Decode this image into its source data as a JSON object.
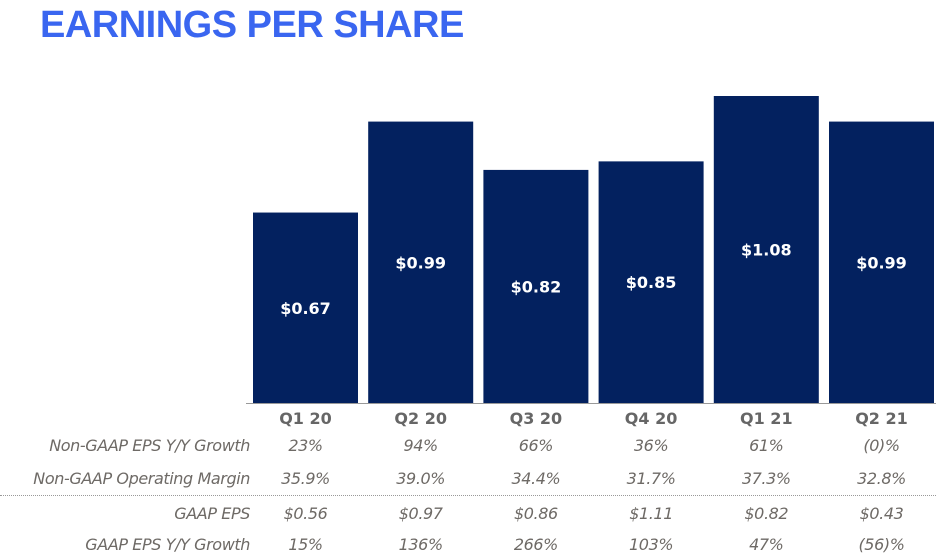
{
  "title": "EARNINGS PER SHARE",
  "colors": {
    "title": "#3a66f0",
    "bar": "#03215f",
    "text": "#6e6a66",
    "axis": "#999999"
  },
  "chart_data": {
    "type": "bar",
    "title": "EARNINGS PER SHARE",
    "categories": [
      "Q1 20",
      "Q2 20",
      "Q3 20",
      "Q4 20",
      "Q1 21",
      "Q2 21"
    ],
    "values": [
      0.67,
      0.99,
      0.82,
      0.85,
      1.08,
      0.99
    ],
    "labels": [
      "$0.67",
      "$0.99",
      "$0.82",
      "$0.85",
      "$1.08",
      "$0.99"
    ],
    "xlabel": "",
    "ylabel": "",
    "ylim": [
      0,
      1.08
    ],
    "grid": false
  },
  "table": {
    "rows": [
      {
        "label": "Non-GAAP EPS Y/Y Growth",
        "values": [
          "23%",
          "94%",
          "66%",
          "36%",
          "61%",
          "(0)%"
        ]
      },
      {
        "label": "Non-GAAP Operating Margin",
        "values": [
          "35.9%",
          "39.0%",
          "34.4%",
          "31.7%",
          "37.3%",
          "32.8%"
        ]
      },
      {
        "label": "GAAP EPS",
        "values": [
          "$0.56",
          "$0.97",
          "$0.86",
          "$1.11",
          "$0.82",
          "$0.43"
        ]
      },
      {
        "label": "GAAP EPS Y/Y Growth",
        "values": [
          "15%",
          "136%",
          "266%",
          "103%",
          "47%",
          "(56)%"
        ]
      }
    ]
  }
}
